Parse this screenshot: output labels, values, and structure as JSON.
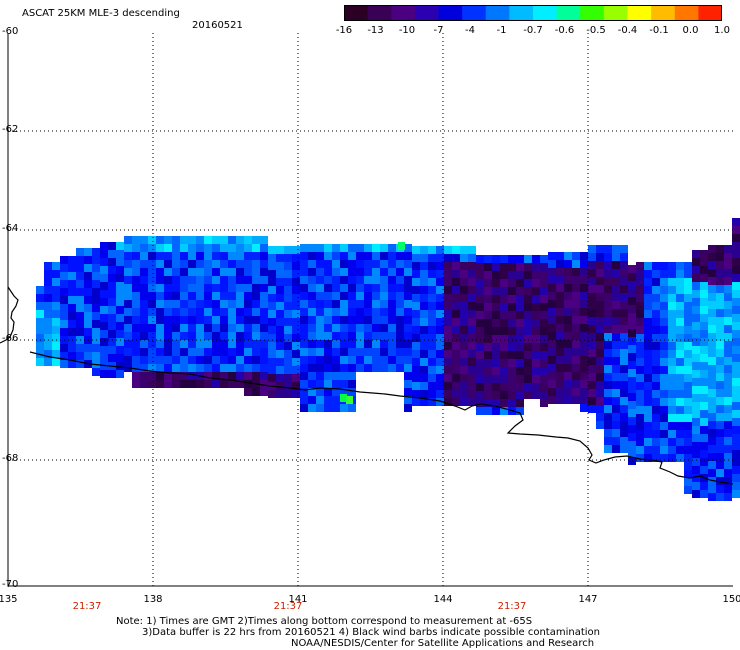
{
  "title": "ASCAT 25KM MLE-3 descending",
  "date": "20160521",
  "colorbar": {
    "colors": [
      "#2b0024",
      "#3a0055",
      "#4b0082",
      "#2a00b0",
      "#0000dd",
      "#0033ff",
      "#0077ff",
      "#00bbff",
      "#00eeff",
      "#00ff99",
      "#33ff00",
      "#99ff00",
      "#ffff00",
      "#ffbb00",
      "#ff7700",
      "#ff2200"
    ],
    "ticks": [
      "-16",
      "-13",
      "-10",
      "-7",
      "-4",
      "-1",
      "-0.7",
      "-0.6",
      "-0.5",
      "-0.4",
      "-0.1",
      "0.0",
      "1.0"
    ]
  },
  "y_labels": [
    "-60",
    "-62",
    "-64",
    "-66",
    "-68",
    "-70"
  ],
  "x_labels": [
    "135",
    "138",
    "141",
    "144",
    "147",
    "150"
  ],
  "times": [
    "21:37",
    "21:37",
    "21:37"
  ],
  "notes": {
    "line1": "Note: 1) Times are GMT 2)Times along bottom correspond to measurement at -65S",
    "line2": "3)Data buffer is 22 hrs from 20160521 4) Black wind barbs indicate possible contamination",
    "line3": "NOAA/NESDIS/Center for Satellite Applications and Research"
  }
}
